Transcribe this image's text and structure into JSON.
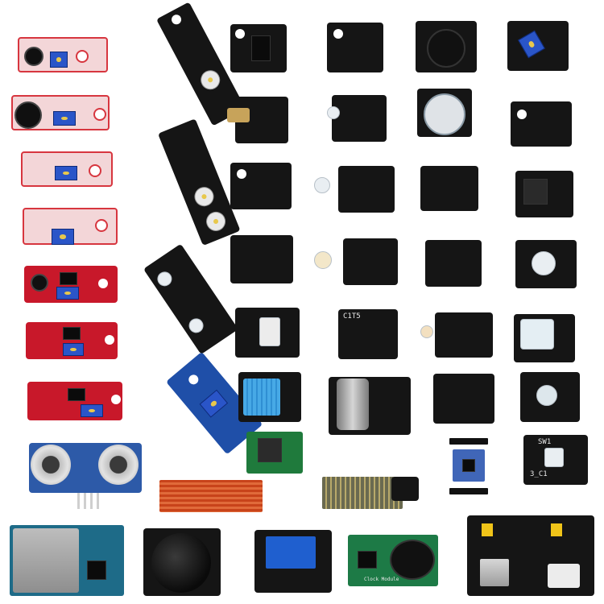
{
  "photo": {
    "description_free": true,
    "visible_labels": {
      "sw_label": "SW1",
      "clip_label": "3_C1",
      "rtc_label": "Clock Module"
    }
  }
}
